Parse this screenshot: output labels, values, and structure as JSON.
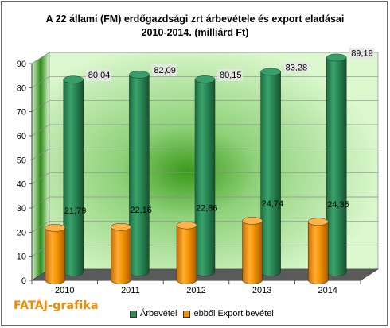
{
  "chart_data": {
    "type": "bar",
    "title": "A 22 állami (FM) erdőgazdsági zrt árbevétele és export eladásai",
    "subtitle": "2010-2014. (milliárd Ft)",
    "categories": [
      "2010",
      "2011",
      "2012",
      "2013",
      "2014"
    ],
    "series": [
      {
        "name": "Árbevétel",
        "values": [
          80.04,
          82.09,
          80.15,
          83.28,
          89.19
        ],
        "labels": [
          "80,04",
          "82,09",
          "80,15",
          "83,28",
          "89,19"
        ],
        "color": "#2e8b57"
      },
      {
        "name": "ebből Export bevétel",
        "values": [
          21.79,
          22.16,
          22.86,
          24.74,
          24.35
        ],
        "labels": [
          "21,79",
          "22,16",
          "22,86",
          "24,74",
          "24,35"
        ],
        "color": "#f39200"
      }
    ],
    "yticks": [
      "0",
      "10",
      "20",
      "30",
      "40",
      "50",
      "60",
      "70",
      "80",
      "90"
    ],
    "ylim": [
      0,
      90
    ],
    "grid": true,
    "legend_position": "bottom",
    "style": "3d-cylinder"
  },
  "branding": {
    "text": "FATÁJ-grafika"
  },
  "colors": {
    "wall": "#d7f7c8",
    "wall_center": "#3f9c1e",
    "floor": "#606060",
    "grid": "#909090"
  }
}
